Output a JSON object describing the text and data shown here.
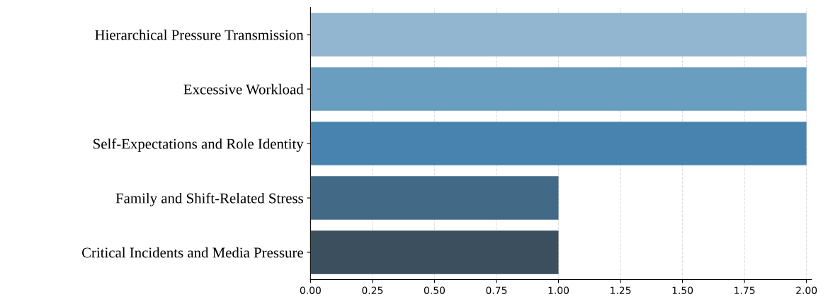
{
  "chart_data": {
    "type": "bar",
    "orientation": "horizontal",
    "categories": [
      "Hierarchical Pressure Transmission",
      "Excessive Workload",
      "Self-Expectations and Role Identity",
      "Family and Shift-Related Stress",
      "Critical Incidents and Media Pressure"
    ],
    "values": [
      2,
      2,
      2,
      1,
      1
    ],
    "colors": [
      "#92b5d0",
      "#6a9ec0",
      "#4883b0",
      "#426985",
      "#3c4f5e"
    ],
    "xlim": [
      0,
      2.02
    ],
    "xticks": [
      {
        "value": 0,
        "label": "0.00"
      },
      {
        "value": 0.25,
        "label": "0.25"
      },
      {
        "value": 0.5,
        "label": "0.50"
      },
      {
        "value": 0.75,
        "label": "0.75"
      },
      {
        "value": 1,
        "label": "1.00"
      },
      {
        "value": 1.25,
        "label": "1.25"
      },
      {
        "value": 1.5,
        "label": "1.50"
      },
      {
        "value": 1.75,
        "label": "1.75"
      },
      {
        "value": 2,
        "label": "2.00"
      }
    ],
    "grid": "x"
  }
}
